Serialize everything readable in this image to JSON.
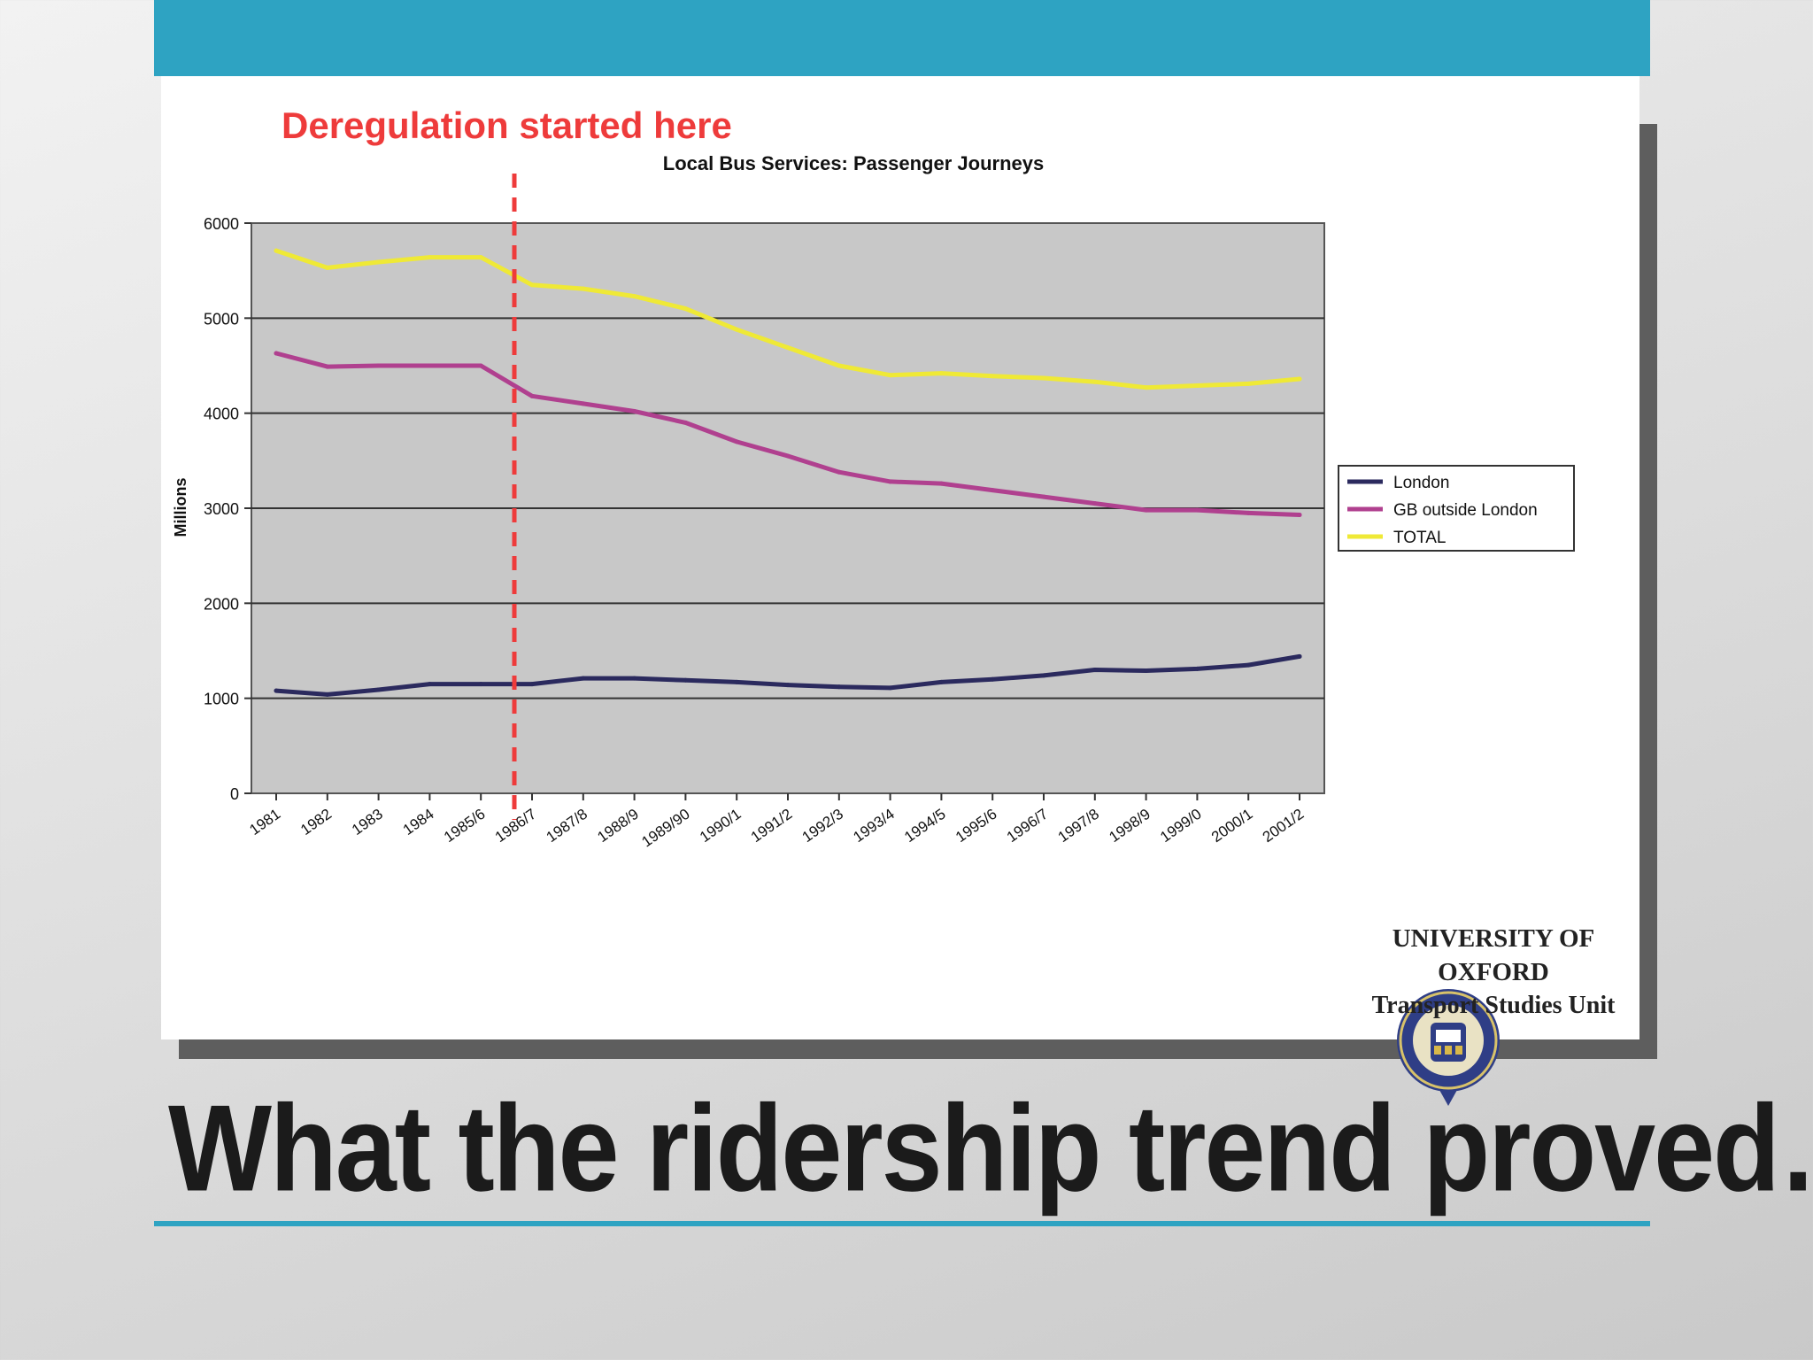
{
  "slide": {
    "title": "What the ridership trend proved…"
  },
  "annotation": {
    "text": "Deregulation started here",
    "color": "#ee3b3b",
    "at_category": "1986/7"
  },
  "logo": {
    "line1": "UNIVERSITY OF",
    "line2": "OXFORD",
    "line3": "Transport Studies Unit"
  },
  "colors": {
    "accent": "#2ea3c2",
    "plot_background": "#c8c8c8"
  },
  "chart_data": {
    "type": "line",
    "title": "Local Bus Services: Passenger Journeys",
    "xlabel": "",
    "ylabel": "Millions",
    "ylim": [
      0,
      6000
    ],
    "yticks": [
      0,
      1000,
      2000,
      3000,
      4000,
      5000,
      6000
    ],
    "grid": true,
    "legend_position": "right",
    "categories": [
      "1981",
      "1982",
      "1983",
      "1984",
      "1985/6",
      "1986/7",
      "1987/8",
      "1988/9",
      "1989/90",
      "1990/1",
      "1991/2",
      "1992/3",
      "1993/4",
      "1994/5",
      "1995/6",
      "1996/7",
      "1997/8",
      "1998/9",
      "1999/0",
      "2000/1",
      "2001/2"
    ],
    "series": [
      {
        "name": "London",
        "color": "#2b2a5e",
        "values": [
          1080,
          1040,
          1090,
          1150,
          1150,
          1150,
          1210,
          1210,
          1190,
          1170,
          1140,
          1120,
          1110,
          1170,
          1200,
          1240,
          1300,
          1290,
          1310,
          1350,
          1440
        ]
      },
      {
        "name": "GB outside  London",
        "color": "#b0408f",
        "values": [
          4630,
          4490,
          4500,
          4500,
          4500,
          4180,
          4100,
          4020,
          3900,
          3700,
          3550,
          3380,
          3280,
          3260,
          3190,
          3120,
          3050,
          2980,
          2980,
          2950,
          2930
        ]
      },
      {
        "name": "TOTAL",
        "color": "#efe936",
        "values": [
          5710,
          5530,
          5590,
          5640,
          5640,
          5350,
          5310,
          5230,
          5100,
          4880,
          4690,
          4500,
          4400,
          4420,
          4390,
          4370,
          4330,
          4270,
          4290,
          4310,
          4360
        ]
      }
    ]
  }
}
